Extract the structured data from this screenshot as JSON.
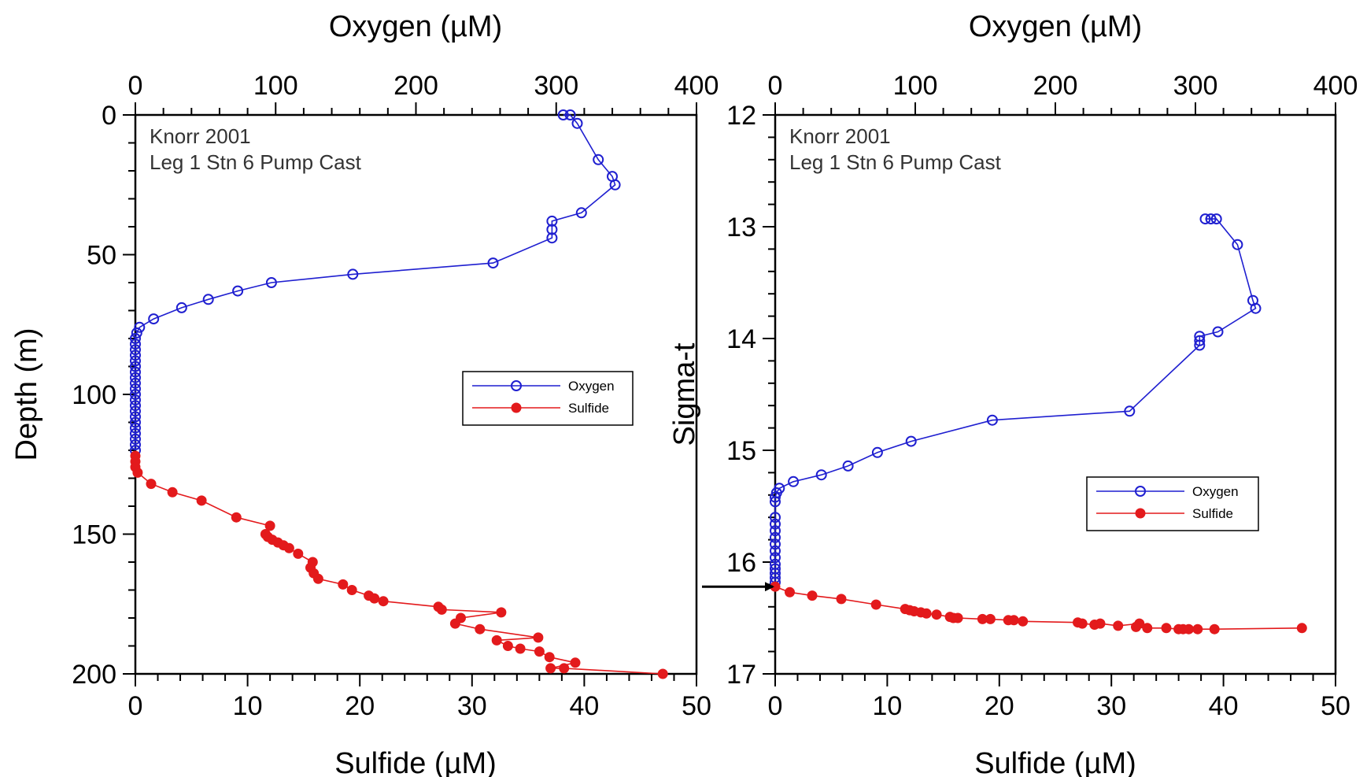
{
  "colors": {
    "oxygen": "#1f1fd0",
    "sulfide": "#e31a1c",
    "axis": "#000000"
  },
  "chart_data": [
    {
      "type": "line",
      "panel": "left",
      "annotation": [
        "Knorr 2001",
        "Leg 1 Stn 6 Pump Cast"
      ],
      "top_axis": {
        "label": "Oxygen (µM)",
        "range": [
          0,
          400
        ],
        "ticks": [
          "0",
          "100",
          "200",
          "300",
          "400"
        ]
      },
      "bottom_axis": {
        "label": "Sulfide (µM)",
        "range": [
          0,
          50
        ],
        "ticks": [
          "0",
          "10",
          "20",
          "30",
          "40",
          "50"
        ]
      },
      "left_axis": {
        "label": "Depth (m)",
        "range": [
          0,
          200
        ],
        "reversed": true,
        "ticks": [
          "0",
          "50",
          "100",
          "150",
          "200"
        ]
      },
      "legend": {
        "position": "right-middle",
        "entries": [
          "Oxygen",
          "Sulfide"
        ]
      },
      "grid": false,
      "series": [
        {
          "name": "Oxygen",
          "axis": "top",
          "marker": "open-circle",
          "points": [
            [
              305,
              0
            ],
            [
              310,
              0
            ],
            [
              315,
              3
            ],
            [
              330,
              16
            ],
            [
              340,
              22
            ],
            [
              342,
              25
            ],
            [
              318,
              35
            ],
            [
              297,
              38
            ],
            [
              297,
              41
            ],
            [
              297,
              44
            ],
            [
              255,
              53
            ],
            [
              155,
              57
            ],
            [
              97,
              60
            ],
            [
              73,
              63
            ],
            [
              52,
              66
            ],
            [
              33,
              69
            ],
            [
              13,
              73
            ],
            [
              3,
              76
            ],
            [
              1,
              78
            ],
            [
              0,
              80
            ],
            [
              0,
              82
            ],
            [
              0,
              84
            ],
            [
              0,
              86
            ],
            [
              0,
              88
            ],
            [
              0,
              90
            ],
            [
              0,
              92
            ],
            [
              0,
              94
            ],
            [
              0,
              96
            ],
            [
              0,
              98
            ],
            [
              0,
              100
            ],
            [
              0,
              102
            ],
            [
              0,
              104
            ],
            [
              0,
              106
            ],
            [
              0,
              108
            ],
            [
              0,
              110
            ],
            [
              0,
              112
            ],
            [
              0,
              114
            ],
            [
              0,
              116
            ],
            [
              0,
              118
            ],
            [
              0,
              120
            ]
          ]
        },
        {
          "name": "Sulfide",
          "axis": "bottom",
          "marker": "filled-circle",
          "points": [
            [
              0,
              122
            ],
            [
              0,
              124
            ],
            [
              0,
              126
            ],
            [
              0.2,
              128
            ],
            [
              1.4,
              132
            ],
            [
              3.3,
              135
            ],
            [
              5.9,
              138
            ],
            [
              9.0,
              144
            ],
            [
              12.0,
              147
            ],
            [
              11.6,
              150
            ],
            [
              11.8,
              151
            ],
            [
              12.2,
              152
            ],
            [
              12.7,
              153
            ],
            [
              13.2,
              154
            ],
            [
              13.7,
              155
            ],
            [
              14.5,
              157
            ],
            [
              15.8,
              160
            ],
            [
              15.6,
              162
            ],
            [
              15.9,
              164
            ],
            [
              16.3,
              166
            ],
            [
              18.5,
              168
            ],
            [
              19.3,
              170
            ],
            [
              20.8,
              172
            ],
            [
              21.3,
              173
            ],
            [
              22.1,
              174
            ],
            [
              27.0,
              176
            ],
            [
              27.3,
              177
            ],
            [
              32.6,
              178
            ],
            [
              29.0,
              180
            ],
            [
              28.5,
              182
            ],
            [
              30.7,
              184
            ],
            [
              35.9,
              187
            ],
            [
              32.2,
              188
            ],
            [
              33.2,
              190
            ],
            [
              34.3,
              191
            ],
            [
              36.0,
              192
            ],
            [
              36.9,
              194
            ],
            [
              39.2,
              196
            ],
            [
              37.0,
              198
            ],
            [
              38.2,
              198
            ],
            [
              47.0,
              200
            ]
          ]
        }
      ]
    },
    {
      "type": "line",
      "panel": "right",
      "annotation": [
        "Knorr 2001",
        "Leg 1 Stn 6 Pump Cast"
      ],
      "top_axis": {
        "label": "Oxygen (µM)",
        "range": [
          0,
          400
        ],
        "ticks": [
          "0",
          "100",
          "200",
          "300",
          "400"
        ]
      },
      "bottom_axis": {
        "label": "Sulfide (µM)",
        "range": [
          0,
          50
        ],
        "ticks": [
          "0",
          "10",
          "20",
          "30",
          "40",
          "50"
        ]
      },
      "left_axis": {
        "label": "Sigma-t",
        "range": [
          12,
          17
        ],
        "reversed": true,
        "ticks": [
          "12",
          "13",
          "14",
          "15",
          "16",
          "17"
        ]
      },
      "legend": {
        "position": "bottom-right",
        "entries": [
          "Oxygen",
          "Sulfide"
        ]
      },
      "grid": false,
      "arrow_at": 16.22,
      "series": [
        {
          "name": "Oxygen",
          "axis": "top",
          "marker": "open-circle",
          "points": [
            [
              307,
              12.93
            ],
            [
              311,
              12.93
            ],
            [
              315,
              12.93
            ],
            [
              330,
              13.16
            ],
            [
              341,
              13.66
            ],
            [
              343,
              13.73
            ],
            [
              316,
              13.94
            ],
            [
              303,
              13.98
            ],
            [
              303,
              14.02
            ],
            [
              303,
              14.06
            ],
            [
              253,
              14.65
            ],
            [
              155,
              14.73
            ],
            [
              97,
              14.92
            ],
            [
              73,
              15.02
            ],
            [
              52,
              15.14
            ],
            [
              33,
              15.22
            ],
            [
              13,
              15.28
            ],
            [
              3,
              15.34
            ],
            [
              1,
              15.38
            ],
            [
              0,
              15.42
            ],
            [
              0,
              15.46
            ],
            [
              0,
              15.6
            ],
            [
              0,
              15.66
            ],
            [
              0,
              15.72
            ],
            [
              0,
              15.78
            ],
            [
              0,
              15.84
            ],
            [
              0,
              15.9
            ],
            [
              0,
              15.96
            ],
            [
              0,
              16.02
            ],
            [
              0,
              16.06
            ],
            [
              0,
              16.1
            ],
            [
              0,
              16.14
            ],
            [
              0,
              16.18
            ]
          ]
        },
        {
          "name": "Sulfide",
          "axis": "bottom",
          "marker": "filled-circle",
          "points": [
            [
              0,
              16.22
            ],
            [
              1.3,
              16.27
            ],
            [
              3.3,
              16.3
            ],
            [
              5.9,
              16.33
            ],
            [
              9.0,
              16.38
            ],
            [
              11.6,
              16.42
            ],
            [
              12.0,
              16.43
            ],
            [
              12.4,
              16.44
            ],
            [
              13.0,
              16.45
            ],
            [
              13.5,
              16.46
            ],
            [
              14.4,
              16.47
            ],
            [
              15.6,
              16.49
            ],
            [
              15.9,
              16.5
            ],
            [
              16.3,
              16.5
            ],
            [
              18.5,
              16.51
            ],
            [
              19.2,
              16.51
            ],
            [
              20.8,
              16.52
            ],
            [
              21.3,
              16.52
            ],
            [
              22.1,
              16.53
            ],
            [
              27.0,
              16.54
            ],
            [
              27.4,
              16.55
            ],
            [
              28.5,
              16.56
            ],
            [
              29.0,
              16.55
            ],
            [
              30.6,
              16.57
            ],
            [
              32.5,
              16.55
            ],
            [
              32.2,
              16.58
            ],
            [
              33.2,
              16.59
            ],
            [
              34.9,
              16.59
            ],
            [
              36.0,
              16.6
            ],
            [
              36.4,
              16.6
            ],
            [
              36.9,
              16.6
            ],
            [
              37.7,
              16.6
            ],
            [
              39.2,
              16.6
            ],
            [
              47.0,
              16.59
            ]
          ]
        }
      ]
    }
  ]
}
